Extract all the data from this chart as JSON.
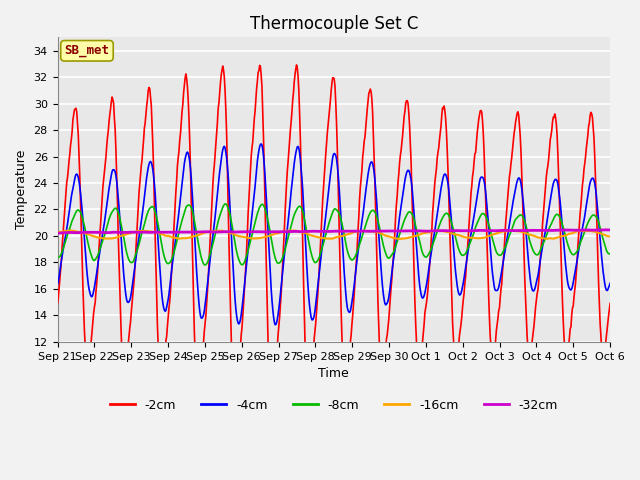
{
  "title": "Thermocouple Set C",
  "xlabel": "Time",
  "ylabel": "Temperature",
  "ylim": [
    12,
    35
  ],
  "yticks": [
    12,
    14,
    16,
    18,
    20,
    22,
    24,
    26,
    28,
    30,
    32,
    34
  ],
  "x_labels": [
    "Sep 21",
    "Sep 22",
    "Sep 23",
    "Sep 24",
    "Sep 25",
    "Sep 26",
    "Sep 27",
    "Sep 28",
    "Sep 29",
    "Sep 30",
    "Oct 1",
    "Oct 2",
    "Oct 3",
    "Oct 4",
    "Oct 5",
    "Oct 6"
  ],
  "series": {
    "-2cm": {
      "color": "#FF0000",
      "linewidth": 1.2
    },
    "-4cm": {
      "color": "#0000FF",
      "linewidth": 1.2
    },
    "-8cm": {
      "color": "#00BB00",
      "linewidth": 1.2
    },
    "-16cm": {
      "color": "#FFA500",
      "linewidth": 1.5
    },
    "-32cm": {
      "color": "#CC00CC",
      "linewidth": 2.0
    }
  },
  "annotation": {
    "text": "SB_met",
    "fontsize": 9,
    "color": "#8B0000",
    "bgcolor": "#FFFFAA",
    "edgecolor": "#999900"
  },
  "background_color": "#E8E8E8",
  "grid_color": "#FFFFFF",
  "title_fontsize": 12,
  "axis_label_fontsize": 9,
  "tick_fontsize": 8
}
